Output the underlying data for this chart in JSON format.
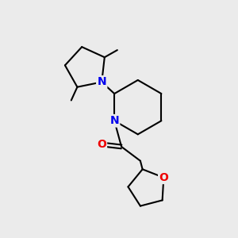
{
  "background_color": "#ebebeb",
  "bond_color": "#000000",
  "N_color": "#0000ee",
  "O_color": "#ee0000",
  "line_width": 1.5,
  "font_size": 10,
  "figsize": [
    3.0,
    3.0
  ],
  "dpi": 100,
  "xlim": [
    0.0,
    10.0
  ],
  "ylim": [
    0.0,
    10.0
  ]
}
